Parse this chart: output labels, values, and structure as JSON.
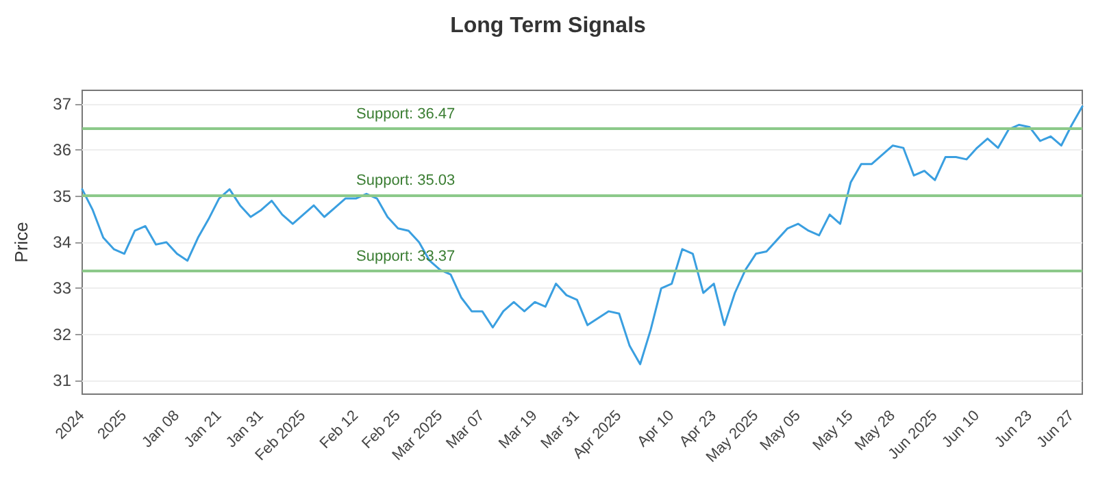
{
  "chart_data": {
    "type": "line",
    "title": "Long Term Signals",
    "ylabel": "Price",
    "categories": [
      "2024",
      null,
      null,
      null,
      "2025",
      null,
      null,
      null,
      null,
      "Jan 08",
      null,
      null,
      null,
      "Jan 21",
      null,
      null,
      null,
      "Jan 31",
      null,
      null,
      null,
      "Feb 2025",
      null,
      null,
      null,
      null,
      "Feb 12",
      null,
      null,
      null,
      "Feb 25",
      null,
      null,
      null,
      "Mar 2025",
      null,
      null,
      null,
      "Mar 07",
      null,
      null,
      null,
      null,
      "Mar 19",
      null,
      null,
      null,
      "Mar 31",
      null,
      null,
      null,
      "Apr 2025",
      null,
      null,
      null,
      null,
      "Apr 10",
      null,
      null,
      null,
      "Apr 23",
      null,
      null,
      null,
      "May 2025",
      null,
      null,
      null,
      "May 05",
      null,
      null,
      null,
      null,
      "May 15",
      null,
      null,
      null,
      "May 28",
      null,
      null,
      null,
      "Jun 2025",
      null,
      null,
      null,
      "Jun 10",
      null,
      null,
      null,
      null,
      "Jun 23",
      null,
      null,
      null,
      "Jun 27",
      null
    ],
    "series": [
      {
        "color": "#3a9fe0",
        "values": [
          35.15,
          34.7,
          34.1,
          33.85,
          33.75,
          34.25,
          34.35,
          33.95,
          34.0,
          33.75,
          33.6,
          34.1,
          34.5,
          34.95,
          35.15,
          34.8,
          34.55,
          34.7,
          34.9,
          34.6,
          34.4,
          34.6,
          34.8,
          34.55,
          34.75,
          34.95,
          34.95,
          35.05,
          34.95,
          34.55,
          34.3,
          34.25,
          34.0,
          33.6,
          33.4,
          33.3,
          32.8,
          32.5,
          32.5,
          32.15,
          32.5,
          32.7,
          32.5,
          32.7,
          32.6,
          33.1,
          32.85,
          32.75,
          32.2,
          32.35,
          32.5,
          32.45,
          31.75,
          31.35,
          32.1,
          33.0,
          33.1,
          33.85,
          33.75,
          32.9,
          33.1,
          32.2,
          32.9,
          33.4,
          33.75,
          33.8,
          34.05,
          34.3,
          34.4,
          34.25,
          34.15,
          34.6,
          34.4,
          35.3,
          35.7,
          35.7,
          35.9,
          36.1,
          36.05,
          35.45,
          35.55,
          35.35,
          35.85,
          35.85,
          35.8,
          36.05,
          36.25,
          36.05,
          36.45,
          36.55,
          36.5,
          36.2,
          36.3,
          36.1,
          36.55,
          36.95
        ]
      }
    ],
    "ylim": [
      30.7,
      37.3
    ],
    "yticks": [
      31,
      32,
      33,
      34,
      35,
      36,
      37
    ],
    "grid": "y",
    "marker": "none",
    "line_style": "solid",
    "ref_lines": [
      {
        "axis": "y",
        "value": 36.47,
        "label": "Support: 36.47",
        "color": "#8cc98a"
      },
      {
        "axis": "y",
        "value": 35.03,
        "label": "Support: 35.03",
        "color": "#8cc98a"
      },
      {
        "axis": "y",
        "value": 33.37,
        "label": "Support: 33.37",
        "color": "#8cc98a"
      }
    ]
  }
}
